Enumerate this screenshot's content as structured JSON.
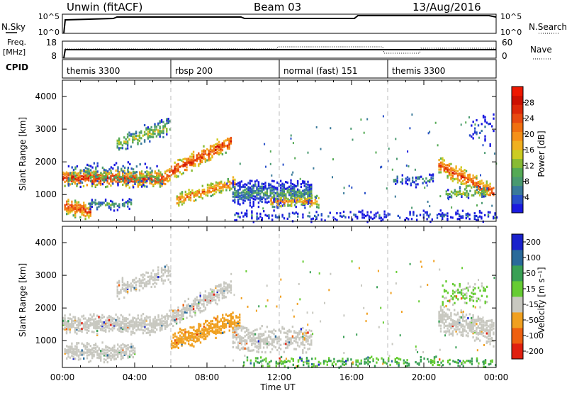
{
  "header": {
    "station": "Unwin (fitACF)",
    "beam": "Beam 03",
    "date": "13/Aug/2016"
  },
  "side_labels": {
    "nsky": "N.Sky",
    "nsky_ticks": [
      "10^5",
      "10^0"
    ],
    "nsearch": "N.Search",
    "nsearch_ticks": [
      "10^5",
      "10^0"
    ],
    "freq": "Freq.",
    "freq_unit": "[MHz]",
    "freq_ticks": [
      "18",
      "8"
    ],
    "nave": "Nave",
    "nave_ticks": [
      "60",
      "0"
    ],
    "cpid": "CPID"
  },
  "cpid_segments": [
    {
      "label": "themis 3300",
      "start": 0
    },
    {
      "label": "rbsp 200",
      "start": 6
    },
    {
      "label": "normal (fast) 151",
      "start": 12
    },
    {
      "label": "themis 3300",
      "start": 18
    }
  ],
  "axes": {
    "ylabel": "Slant Range [km]",
    "xlabel": "Time UT",
    "x_ticks": [
      "00:00",
      "04:00",
      "08:00",
      "12:00",
      "16:00",
      "20:00",
      "00:00"
    ],
    "y_ticks": [
      "1000",
      "2000",
      "3000",
      "4000"
    ]
  },
  "colorbars": {
    "power": {
      "label": "Power [dB]",
      "ticks": [
        "4",
        "8",
        "12",
        "16",
        "20",
        "24",
        "28"
      ],
      "colors": [
        "#1a1ae0",
        "#2850c8",
        "#3a7a9a",
        "#4a9a70",
        "#55aa55",
        "#88bb33",
        "#cccc22",
        "#f0b020",
        "#f59018",
        "#f07010",
        "#e84a10",
        "#dd2808",
        "#cc1000",
        "#ee1800"
      ]
    },
    "velocity": {
      "label": "Velocity [m s⁻¹]",
      "ticks": [
        "200",
        "100",
        "50",
        "15",
        "-15",
        "-50",
        "-100",
        "-200"
      ],
      "colors": [
        "#1a22cc",
        "#2a6a9a",
        "#3aa055",
        "#66cc33",
        "#c8c8c0",
        "#f0a020",
        "#ee6010",
        "#e02010"
      ]
    }
  },
  "chart_data": {
    "type": "heatmap",
    "x_unit": "hours UT",
    "xlim": [
      0,
      24
    ],
    "ylim": [
      180,
      4500
    ],
    "nsky_level": "10^5",
    "freq_mhz": 10.5,
    "power_regions": [
      {
        "t0": 0.0,
        "t1": 5.8,
        "r_center": 1500,
        "thickness": 260,
        "slope_km_per_h": 0,
        "level": 26,
        "density": 0.88
      },
      {
        "t0": 0.3,
        "t1": 5.5,
        "r_center": 1600,
        "thickness": 380,
        "slope_km_per_h": 0,
        "level": 12,
        "density": 0.35
      },
      {
        "t0": 5.8,
        "t1": 9.3,
        "r_center": 1650,
        "thickness": 260,
        "slope_km_per_h": 280,
        "level": 25,
        "density": 0.82
      },
      {
        "t0": 3.0,
        "t1": 6.0,
        "r_center": 2550,
        "thickness": 300,
        "slope_km_per_h": 180,
        "level": 14,
        "density": 0.55
      },
      {
        "t0": 0.1,
        "t1": 1.6,
        "r_center": 650,
        "thickness": 260,
        "slope_km_per_h": -120,
        "level": 24,
        "density": 0.8
      },
      {
        "t0": 1.5,
        "t1": 3.8,
        "r_center": 700,
        "thickness": 180,
        "slope_km_per_h": 0,
        "level": 10,
        "density": 0.55
      },
      {
        "t0": 6.3,
        "t1": 9.5,
        "r_center": 850,
        "thickness": 220,
        "slope_km_per_h": 160,
        "level": 22,
        "density": 0.8
      },
      {
        "t0": 9.4,
        "t1": 13.8,
        "r_center": 1050,
        "thickness": 420,
        "slope_km_per_h": 0,
        "level": 9,
        "density": 0.75
      },
      {
        "t0": 11.5,
        "t1": 14.2,
        "r_center": 800,
        "thickness": 200,
        "slope_km_per_h": 0,
        "level": 20,
        "density": 0.55
      },
      {
        "t0": 9.5,
        "t1": 24.0,
        "r_center": 350,
        "thickness": 160,
        "slope_km_per_h": 0,
        "level": 5,
        "density": 0.35
      },
      {
        "t0": 20.8,
        "t1": 23.9,
        "r_center": 1900,
        "thickness": 260,
        "slope_km_per_h": -280,
        "level": 24,
        "density": 0.8
      },
      {
        "t0": 18.3,
        "t1": 20.5,
        "r_center": 1450,
        "thickness": 200,
        "slope_km_per_h": 0,
        "level": 8,
        "density": 0.4
      },
      {
        "t0": 21.2,
        "t1": 23.5,
        "r_center": 1050,
        "thickness": 180,
        "slope_km_per_h": 0,
        "level": 14,
        "density": 0.6
      },
      {
        "t0": 22.5,
        "t1": 23.9,
        "r_center": 3000,
        "thickness": 500,
        "slope_km_per_h": 0,
        "level": 6,
        "density": 0.15
      }
    ],
    "velocity_regions": [
      {
        "t0": 0.0,
        "t1": 5.8,
        "r_center": 1500,
        "thickness": 300,
        "slope_km_per_h": 0,
        "vel": 0,
        "density": 0.85
      },
      {
        "t0": 5.8,
        "t1": 9.3,
        "r_center": 1650,
        "thickness": 300,
        "slope_km_per_h": 280,
        "vel": 0,
        "density": 0.8
      },
      {
        "t0": 3.0,
        "t1": 6.0,
        "r_center": 2550,
        "thickness": 300,
        "slope_km_per_h": 180,
        "vel": 0,
        "density": 0.5
      },
      {
        "t0": 0.1,
        "t1": 4.0,
        "r_center": 650,
        "thickness": 280,
        "slope_km_per_h": 0,
        "vel": 0,
        "density": 0.7
      },
      {
        "t0": 6.0,
        "t1": 9.8,
        "r_center": 950,
        "thickness": 320,
        "slope_km_per_h": 180,
        "vel": -40,
        "density": 0.75
      },
      {
        "t0": 9.4,
        "t1": 13.8,
        "r_center": 1050,
        "thickness": 420,
        "slope_km_per_h": 0,
        "vel": 5,
        "density": 0.6
      },
      {
        "t0": 10.0,
        "t1": 24.0,
        "r_center": 350,
        "thickness": 160,
        "slope_km_per_h": 0,
        "vel": 30,
        "density": 0.35
      },
      {
        "t0": 20.8,
        "t1": 23.9,
        "r_center": 1700,
        "thickness": 420,
        "slope_km_per_h": -150,
        "vel": 0,
        "density": 0.75
      },
      {
        "t0": 21.0,
        "t1": 23.5,
        "r_center": 2400,
        "thickness": 400,
        "slope_km_per_h": 0,
        "vel": 20,
        "density": 0.3
      }
    ]
  }
}
